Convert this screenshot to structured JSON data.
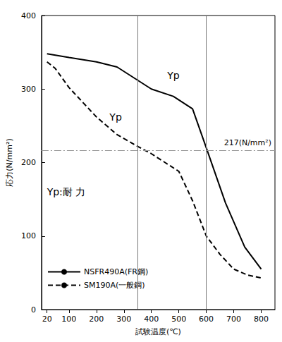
{
  "chart_data": {
    "type": "line",
    "x_label": "試験温度(℃)",
    "y_label": "応力(N/mm²)",
    "xlim": [
      0,
      850
    ],
    "xticks": [
      20,
      100,
      200,
      300,
      400,
      500,
      600,
      700,
      800
    ],
    "ylim": [
      0,
      400
    ],
    "yticks": [
      0,
      100,
      200,
      300,
      400
    ],
    "grid": false,
    "legend": "lower left",
    "series": [
      {
        "name": "NSFR490A(FR鋼)",
        "color": "#000000",
        "line_style": "solid",
        "x": [
          20,
          100,
          200,
          275,
          400,
          480,
          550,
          600,
          670,
          740,
          800
        ],
        "values": [
          348,
          343,
          337,
          330,
          300,
          290,
          273,
          220,
          145,
          85,
          55
        ]
      },
      {
        "name": "SM190A(一般鋼)",
        "color": "#000000",
        "line_style": "dashed",
        "x": [
          20,
          50,
          100,
          200,
          275,
          350,
          400,
          450,
          500,
          550,
          600,
          650,
          700,
          750,
          800
        ],
        "values": [
          337,
          328,
          302,
          262,
          238,
          222,
          212,
          200,
          188,
          148,
          100,
          75,
          55,
          47,
          43
        ]
      }
    ],
    "hlines": [
      {
        "value": 217,
        "label": "217(N/mm²)"
      }
    ],
    "vlines": [
      350,
      600
    ],
    "annotations": [
      {
        "text": "Yp",
        "x": 480,
        "y": 318
      },
      {
        "text": "Yp",
        "x": 270,
        "y": 262
      },
      {
        "text": "Yp:耐 力",
        "x": 90,
        "y": 160
      }
    ]
  }
}
